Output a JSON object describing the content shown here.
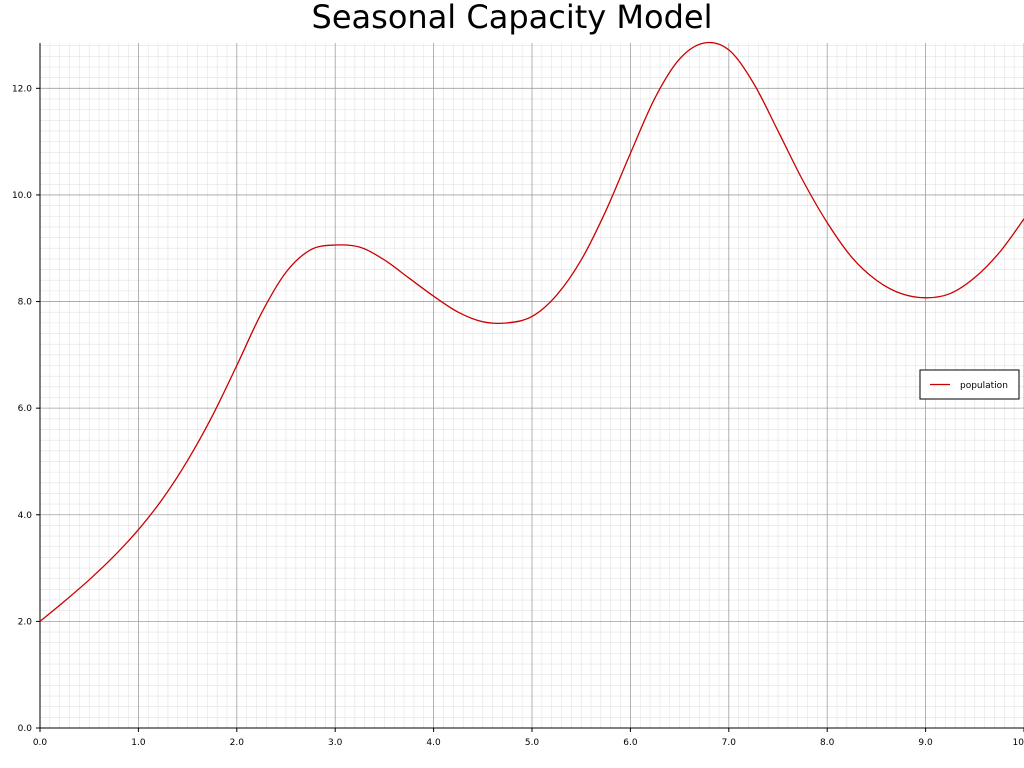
{
  "chart_data": {
    "type": "line",
    "title": "Seasonal Capacity Model",
    "xlabel": "",
    "ylabel": "",
    "xlim": [
      0,
      10
    ],
    "ylim": [
      0,
      12.85
    ],
    "x_ticks": [
      "0.0",
      "1.0",
      "2.0",
      "3.0",
      "4.0",
      "5.0",
      "6.0",
      "7.0",
      "8.0",
      "9.0",
      "10"
    ],
    "y_ticks": [
      "0.0",
      "2.0",
      "4.0",
      "6.0",
      "8.0",
      "10.0",
      "12.0"
    ],
    "grid": true,
    "legend_position": "right",
    "series": [
      {
        "name": "population",
        "color": "#cc0000",
        "x": [
          0.0,
          0.25,
          0.5,
          0.75,
          1.0,
          1.25,
          1.5,
          1.75,
          2.0,
          2.25,
          2.5,
          2.75,
          3.0,
          3.25,
          3.5,
          3.75,
          4.0,
          4.25,
          4.5,
          4.75,
          5.0,
          5.25,
          5.5,
          5.75,
          6.0,
          6.25,
          6.5,
          6.75,
          7.0,
          7.25,
          7.5,
          7.75,
          8.0,
          8.25,
          8.5,
          8.75,
          9.0,
          9.25,
          9.5,
          9.75,
          10.0
        ],
        "y": [
          2.0,
          2.38,
          2.78,
          3.22,
          3.72,
          4.31,
          5.02,
          5.85,
          6.8,
          7.78,
          8.55,
          8.97,
          9.06,
          9.02,
          8.78,
          8.44,
          8.1,
          7.8,
          7.62,
          7.6,
          7.72,
          8.12,
          8.78,
          9.7,
          10.78,
          11.82,
          12.55,
          12.85,
          12.72,
          12.1,
          11.2,
          10.28,
          9.48,
          8.83,
          8.4,
          8.15,
          8.07,
          8.15,
          8.45,
          8.92,
          9.55
        ]
      }
    ]
  }
}
